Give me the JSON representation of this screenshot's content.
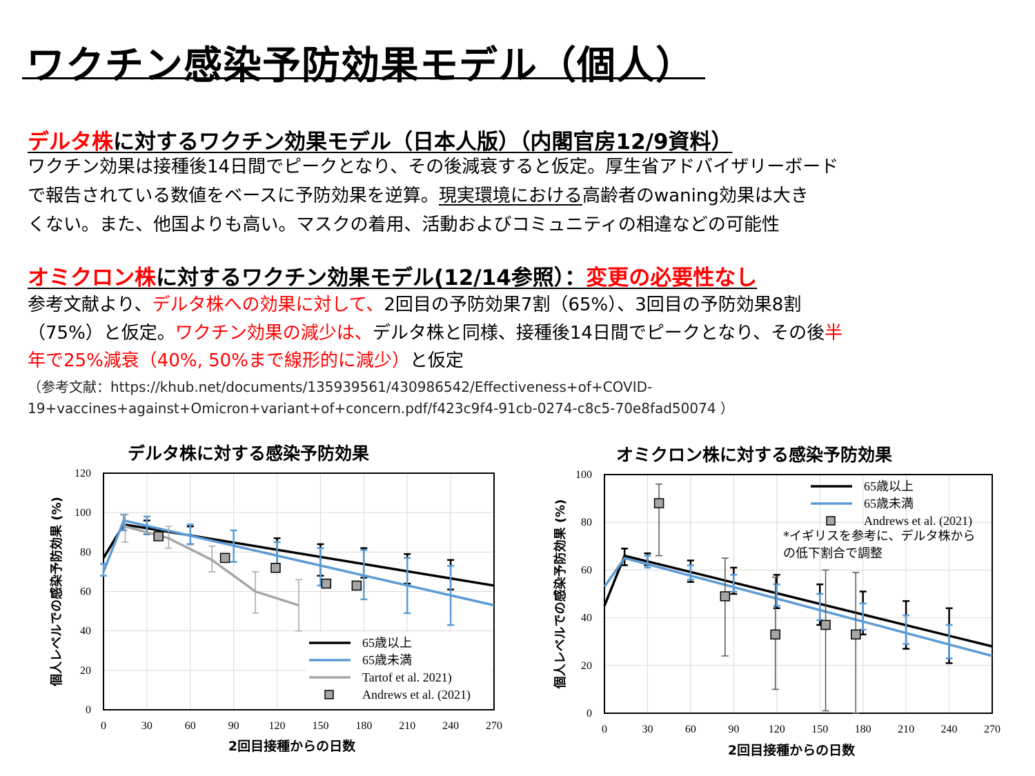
{
  "title": "ワクチン感染予防効果モデル（個人）",
  "delta_section": {
    "head_red": "デルタ株",
    "head_rest": "に対するワクチン効果モデル（日本人版）（内閣官房12/9資料）",
    "line1": "ワクチン効果は接種後14日間でピークとなり、その後減衰すると仮定。厚生省アドバイザリーボード",
    "line2a": "で報告されている数値をベースに予防効果を逆算。",
    "line2u": "現実環境における",
    "line2b": "高齢者のwaning効果は大き",
    "line3": "くない。また、他国よりも高い。マスクの着用、活動およびコミュニティの相違などの可能性"
  },
  "omicron_section": {
    "head_red": "オミクロン株",
    "head_mid": "に対するワクチン効果モデル(12/14参照）：",
    "head_red2": "変更の必要性なし",
    "l1a": "参考文献より、",
    "l1r": "デルタ株への効果に対して、",
    "l1b": "2回目の予防効果7割（65%）、3回目の予防効果8割",
    "l2a": "（75%）と仮定。",
    "l2r": "ワクチン効果の減少は、",
    "l2b": "デルタ株と同様、接種後14日間でピークとなり、その後",
    "l2r2": "半",
    "l3r": "年で25%減衰（40%, 50%まで線形的に減少）",
    "l3b": "と仮定",
    "ref1": "（参考文献：https://khub.net/documents/135939561/430986542/Effectiveness+of+COVID-",
    "ref2": "19+vaccines+against+Omicron+variant+of+concern.pdf/f423c9f4-91cb-0274-c8c5-70e8fad50074 ）"
  },
  "colors": {
    "black_line": "#000000",
    "blue_line": "#5b9bd5",
    "gray_line": "#a6a6a6",
    "marker": "#a6a6a6",
    "accent": "#ff0000"
  },
  "chart_data": [
    {
      "type": "line",
      "title": "デルタ株に対する感染予防効果",
      "xlabel": "2回目接種からの日数",
      "ylabel": "個人レベルでの感染予防効果 (%)",
      "xlim": [
        0,
        270
      ],
      "ylim": [
        0,
        120
      ],
      "xticks": [
        0,
        30,
        60,
        90,
        120,
        150,
        180,
        210,
        240,
        270
      ],
      "yticks": [
        0,
        20,
        40,
        60,
        80,
        100,
        120
      ],
      "legend": "bottom-right",
      "grid": true,
      "series": [
        {
          "name": "65歳以上",
          "kind": "line",
          "color": "#000000",
          "x": [
            0,
            14,
            270
          ],
          "y": [
            77,
            94,
            63
          ],
          "err_x": [
            30,
            60,
            120,
            150,
            180,
            210,
            240
          ],
          "err_low": [
            89,
            84,
            71,
            68,
            67,
            64,
            61
          ],
          "err_high": [
            96,
            93,
            87,
            84,
            82,
            79,
            76
          ]
        },
        {
          "name": "65歳未満",
          "kind": "line",
          "color": "#5b9bd5",
          "x": [
            0,
            14,
            270
          ],
          "y": [
            70,
            96,
            53
          ],
          "err_x": [
            0,
            14,
            30,
            60,
            90,
            120,
            150,
            180,
            210,
            240
          ],
          "err_low": [
            68,
            91,
            89,
            84,
            75,
            70,
            63,
            56,
            49,
            43
          ],
          "err_high": [
            74,
            99,
            98,
            94,
            91,
            85,
            82,
            81,
            77,
            73
          ]
        },
        {
          "name": "Tartof et al.  2021)",
          "kind": "line",
          "color": "#a6a6a6",
          "x": [
            15,
            45,
            75,
            105,
            135
          ],
          "y": [
            93,
            87,
            76,
            60,
            53
          ],
          "err_x": [
            15,
            45,
            75,
            105,
            135
          ],
          "err_low": [
            85,
            82,
            70,
            49,
            40
          ],
          "err_high": [
            99,
            93,
            83,
            70,
            66
          ]
        },
        {
          "name": "Andrews et al. (2021)",
          "kind": "marker",
          "color": "#a6a6a6",
          "x": [
            38,
            84,
            119,
            154,
            175
          ],
          "y": [
            88,
            77,
            72,
            64,
            63
          ]
        }
      ]
    },
    {
      "type": "line",
      "title": "オミクロン株に対する感染予防効果",
      "xlabel": "2回目接種からの日数",
      "ylabel": "個人レベルでの感染予防効果 (%)",
      "xlim": [
        0,
        270
      ],
      "ylim": [
        0,
        100
      ],
      "xticks": [
        0,
        30,
        60,
        90,
        120,
        150,
        180,
        210,
        240,
        270
      ],
      "yticks": [
        0,
        20,
        40,
        60,
        80,
        100
      ],
      "legend": "top-right",
      "grid": true,
      "annotation": [
        "*イギリスを参考に、デルタ株から",
        "の低下割合で調整"
      ],
      "series": [
        {
          "name": "65歳以上",
          "kind": "line",
          "color": "#000000",
          "x": [
            0,
            14,
            270
          ],
          "y": [
            45,
            66,
            28
          ],
          "err_x": [
            14,
            30,
            60,
            90,
            120,
            150,
            180,
            210,
            240
          ],
          "err_low": [
            62,
            62,
            55,
            50,
            44,
            37,
            33,
            27,
            21
          ],
          "err_high": [
            69,
            67,
            64,
            61,
            58,
            54,
            51,
            47,
            44
          ]
        },
        {
          "name": "65歳未満",
          "kind": "line",
          "color": "#5b9bd5",
          "x": [
            0,
            14,
            270
          ],
          "y": [
            53,
            65,
            24
          ],
          "err_x": [
            30,
            60,
            90,
            120,
            150,
            180,
            210,
            240
          ],
          "err_low": [
            61,
            56,
            51,
            45,
            39,
            35,
            29,
            23
          ],
          "err_high": [
            66,
            62,
            58,
            54,
            50,
            46,
            41,
            37
          ]
        },
        {
          "name": "Andrews et al. (2021)",
          "kind": "marker",
          "color": "#a6a6a6",
          "x": [
            38,
            84,
            119,
            154,
            175
          ],
          "y": [
            88,
            49,
            33,
            37,
            33
          ],
          "err_low": [
            66,
            24,
            10,
            1,
            0
          ],
          "err_high": [
            96,
            65,
            57,
            60,
            59
          ]
        }
      ]
    }
  ]
}
